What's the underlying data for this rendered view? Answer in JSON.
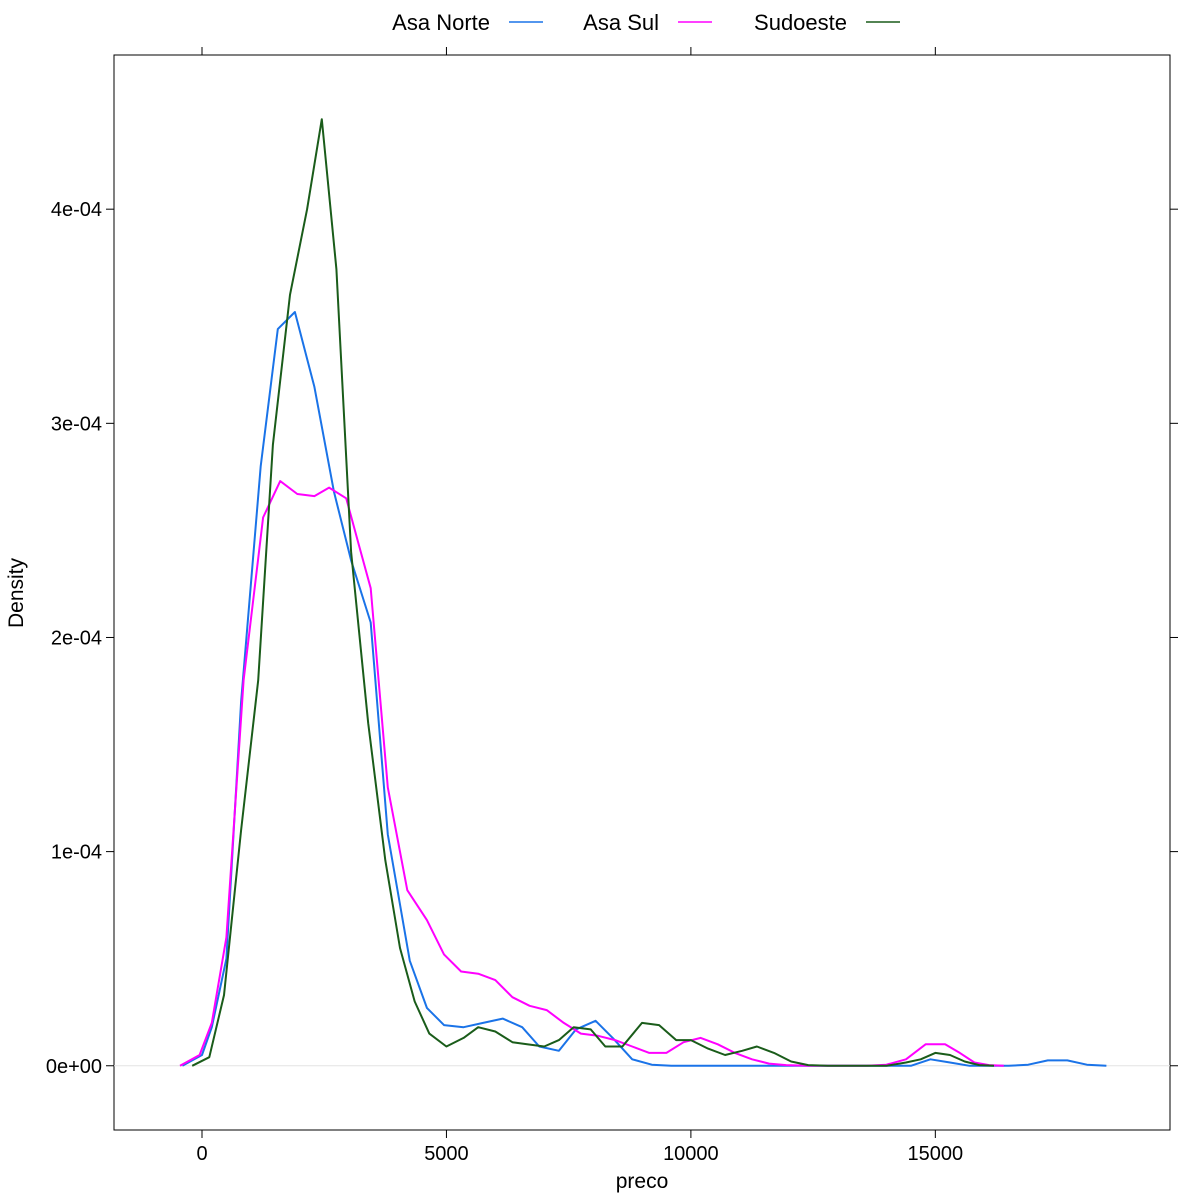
{
  "chart_data": {
    "type": "line",
    "title": "",
    "xlabel": "preco",
    "ylabel": "Density",
    "xlim": [
      -1800,
      19800
    ],
    "ylim": [
      -3e-05,
      0.000472
    ],
    "x_ticks": [
      0,
      5000,
      10000,
      15000
    ],
    "x_tick_labels": [
      "0",
      "5000",
      "10000",
      "15000"
    ],
    "y_ticks": [
      0,
      0.0001,
      0.0002,
      0.0003,
      0.0004
    ],
    "y_tick_labels": [
      "0e+00",
      "1e-04",
      "2e-04",
      "3e-04",
      "4e-04"
    ],
    "grid": false,
    "zero_reference_line": true,
    "legend": {
      "placement": "top",
      "columns": 3
    },
    "series": [
      {
        "name": "Asa Norte",
        "color": "#1a73e8",
        "x": [
          -400,
          0,
          200,
          500,
          800,
          1200,
          1550,
          1900,
          2300,
          2700,
          3050,
          3450,
          3800,
          4250,
          4600,
          4950,
          5350,
          5750,
          6150,
          6550,
          6900,
          7300,
          7650,
          8050,
          8400,
          8800,
          9200,
          9600,
          10000,
          10400,
          10800,
          11200,
          11600,
          12000,
          12500,
          13000,
          13500,
          14000,
          14500,
          14900,
          15300,
          15700,
          16100,
          16500,
          16900,
          17300,
          17700,
          18100,
          18500
        ],
        "y": [
          0.0,
          5e-06,
          1.8e-05,
          5e-05,
          0.00017,
          0.00028,
          0.000344,
          0.000352,
          0.000317,
          0.000268,
          0.000236,
          0.000207,
          0.000108,
          4.9e-05,
          2.7e-05,
          1.9e-05,
          1.8e-05,
          2e-05,
          2.2e-05,
          1.8e-05,
          9e-06,
          7e-06,
          1.7e-05,
          2.1e-05,
          1.3e-05,
          3e-06,
          5e-07,
          0.0,
          0.0,
          0.0,
          0.0,
          0.0,
          0.0,
          0.0,
          0.0,
          0.0,
          0.0,
          0.0,
          0.0,
          3e-06,
          1.5e-06,
          0.0,
          0.0,
          0.0,
          5e-07,
          2.5e-06,
          2.5e-06,
          5e-07,
          0.0
        ]
      },
      {
        "name": "Asa Sul",
        "color": "#ff00ff",
        "x": [
          -450,
          -50,
          200,
          500,
          850,
          1250,
          1600,
          1950,
          2300,
          2600,
          2950,
          3200,
          3450,
          3800,
          4200,
          4600,
          4950,
          5300,
          5650,
          6000,
          6350,
          6700,
          7050,
          7400,
          7750,
          8100,
          8450,
          8800,
          9150,
          9500,
          9850,
          10200,
          10550,
          10900,
          11250,
          11600,
          11950,
          12400,
          12800,
          13200,
          13600,
          14000,
          14400,
          14800,
          15200,
          15500,
          15800,
          16100,
          16400
        ],
        "y": [
          0.0,
          5e-06,
          2e-05,
          6e-05,
          0.00018,
          0.000256,
          0.000273,
          0.000267,
          0.000266,
          0.00027,
          0.000265,
          0.000244,
          0.000223,
          0.00013,
          8.2e-05,
          6.8e-05,
          5.2e-05,
          4.4e-05,
          4.3e-05,
          4e-05,
          3.2e-05,
          2.8e-05,
          2.6e-05,
          2e-05,
          1.5e-05,
          1.4e-05,
          1.2e-05,
          9e-06,
          6e-06,
          6e-06,
          1.1e-05,
          1.3e-05,
          1e-05,
          6e-06,
          3e-06,
          1e-06,
          3e-07,
          0.0,
          0.0,
          0.0,
          0.0,
          5e-07,
          3e-06,
          1e-05,
          1e-05,
          6e-06,
          1.5e-06,
          3e-07,
          0.0
        ]
      },
      {
        "name": "Sudoeste",
        "color": "#1a5c1a",
        "x": [
          -200,
          150,
          450,
          800,
          1150,
          1450,
          1800,
          2150,
          2450,
          2750,
          3050,
          3400,
          3750,
          4050,
          4350,
          4650,
          5000,
          5350,
          5650,
          6000,
          6350,
          6650,
          7000,
          7300,
          7600,
          7950,
          8250,
          8600,
          9000,
          9350,
          9700,
          10000,
          10350,
          10700,
          11050,
          11350,
          11700,
          12050,
          12400,
          12800,
          13200,
          13600,
          14000,
          14400,
          14700,
          15000,
          15300,
          15600,
          15900,
          16200
        ],
        "y": [
          0.0,
          4e-06,
          3.3e-05,
          0.00011,
          0.00018,
          0.00029,
          0.00036,
          0.0004,
          0.000442,
          0.000372,
          0.00024,
          0.00016,
          9.6e-05,
          5.5e-05,
          3e-05,
          1.5e-05,
          9e-06,
          1.3e-05,
          1.8e-05,
          1.6e-05,
          1.1e-05,
          1e-05,
          9e-06,
          1.2e-05,
          1.8e-05,
          1.7e-05,
          9e-06,
          9e-06,
          2e-05,
          1.9e-05,
          1.2e-05,
          1.2e-05,
          8e-06,
          5e-06,
          7e-06,
          9e-06,
          6e-06,
          2e-06,
          3e-07,
          0.0,
          0.0,
          0.0,
          0.0,
          1.5e-06,
          3e-06,
          6e-06,
          5e-06,
          2e-06,
          3e-07,
          0.0
        ]
      }
    ]
  }
}
